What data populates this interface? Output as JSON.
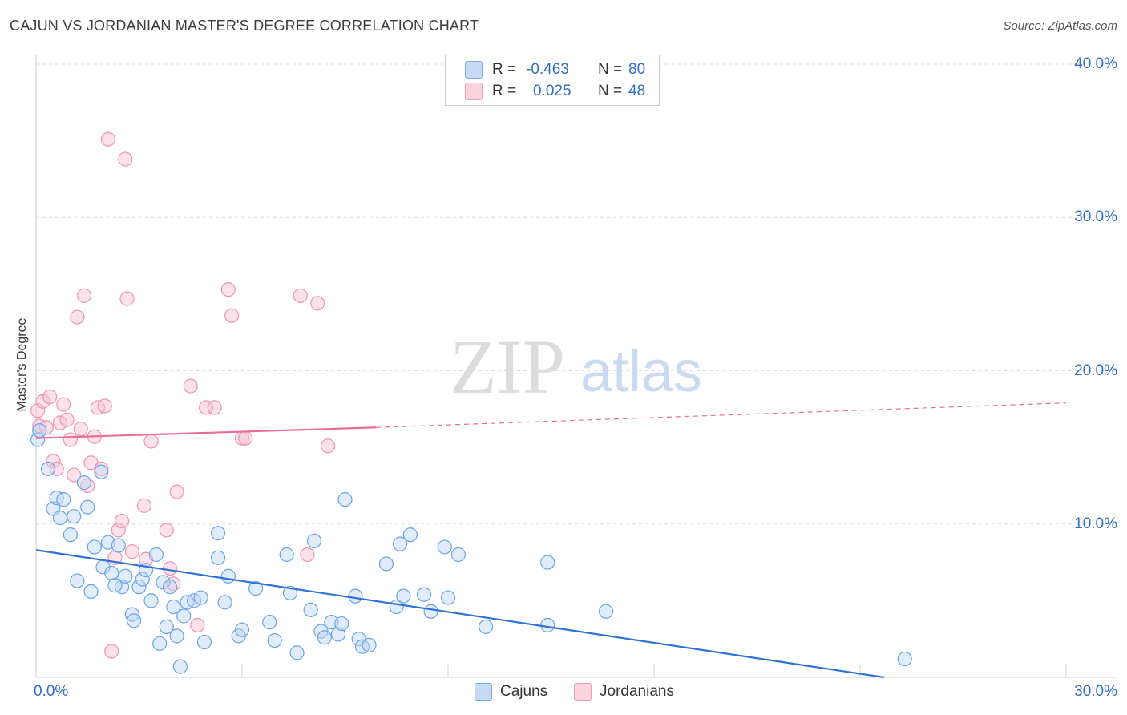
{
  "header": {
    "title": "CAJUN VS JORDANIAN MASTER'S DEGREE CORRELATION CHART",
    "source": "Source: ZipAtlas.com"
  },
  "watermark": {
    "zip": "ZIP",
    "atlas": "atlas"
  },
  "legend": {
    "rows": [
      {
        "r_label": "R =",
        "r_value": "-0.463",
        "n_label": "N =",
        "n_value": "80",
        "color": "#a9c8f0"
      },
      {
        "r_label": "R =",
        "r_value": "0.025",
        "n_label": "N =",
        "n_value": "48",
        "color": "#f6b8cb"
      }
    ]
  },
  "bottom_legend": {
    "cajuns": "Cajuns",
    "jordanians": "Jordanians"
  },
  "chart_data": {
    "type": "scatter",
    "title": "CAJUN VS JORDANIAN MASTER'S DEGREE CORRELATION CHART",
    "xlabel": "",
    "ylabel": "Master's Degree",
    "xlim": [
      0,
      30
    ],
    "ylim": [
      0,
      40
    ],
    "x_tick_labels": [
      "0.0%",
      "30.0%"
    ],
    "y_tick_labels": [
      "10.0%",
      "20.0%",
      "30.0%",
      "40.0%"
    ],
    "y_ticks": [
      10,
      20,
      30,
      40
    ],
    "colors": {
      "cajuns": "#6aa3e6",
      "jordanians": "#ee93b0",
      "cajuns_line": "#2f72d3",
      "jordanians_line": "#e86d98"
    },
    "series": [
      {
        "name": "Cajuns",
        "r": -0.463,
        "n": 80,
        "trend": {
          "x0": 0,
          "y0": 8.3,
          "x1": 24.7,
          "y1": 0,
          "dashed_to": null
        },
        "points": [
          [
            0.05,
            15.5
          ],
          [
            0.35,
            13.6
          ],
          [
            0.5,
            11.0
          ],
          [
            0.6,
            11.7
          ],
          [
            0.7,
            10.4
          ],
          [
            0.8,
            11.6
          ],
          [
            1.0,
            9.3
          ],
          [
            1.1,
            10.5
          ],
          [
            1.2,
            6.3
          ],
          [
            1.4,
            12.7
          ],
          [
            1.5,
            11.1
          ],
          [
            1.6,
            5.6
          ],
          [
            1.7,
            8.5
          ],
          [
            1.9,
            13.4
          ],
          [
            1.95,
            7.2
          ],
          [
            2.1,
            8.8
          ],
          [
            2.2,
            6.8
          ],
          [
            2.4,
            8.6
          ],
          [
            2.5,
            5.9
          ],
          [
            2.6,
            6.6
          ],
          [
            2.8,
            4.1
          ],
          [
            2.85,
            3.7
          ],
          [
            3.0,
            5.9
          ],
          [
            3.1,
            6.4
          ],
          [
            3.2,
            7.0
          ],
          [
            3.35,
            5.0
          ],
          [
            3.5,
            8.0
          ],
          [
            3.6,
            2.2
          ],
          [
            3.7,
            6.2
          ],
          [
            3.8,
            3.3
          ],
          [
            3.9,
            5.9
          ],
          [
            4.0,
            4.6
          ],
          [
            4.1,
            2.7
          ],
          [
            4.2,
            0.7
          ],
          [
            4.3,
            4.0
          ],
          [
            4.4,
            4.9
          ],
          [
            4.6,
            5.0
          ],
          [
            4.8,
            5.2
          ],
          [
            4.9,
            2.3
          ],
          [
            5.3,
            7.8
          ],
          [
            5.3,
            9.4
          ],
          [
            5.5,
            4.9
          ],
          [
            5.6,
            6.6
          ],
          [
            5.9,
            2.7
          ],
          [
            6.0,
            3.1
          ],
          [
            6.4,
            5.8
          ],
          [
            6.8,
            3.6
          ],
          [
            6.95,
            2.4
          ],
          [
            7.3,
            8.0
          ],
          [
            7.4,
            5.5
          ],
          [
            7.6,
            1.6
          ],
          [
            8.0,
            4.4
          ],
          [
            8.1,
            8.9
          ],
          [
            8.3,
            3.0
          ],
          [
            8.4,
            2.6
          ],
          [
            8.6,
            3.6
          ],
          [
            8.8,
            2.8
          ],
          [
            8.9,
            3.5
          ],
          [
            9.0,
            11.6
          ],
          [
            9.3,
            5.3
          ],
          [
            9.4,
            2.5
          ],
          [
            9.5,
            2.0
          ],
          [
            9.7,
            2.1
          ],
          [
            10.2,
            7.4
          ],
          [
            10.5,
            4.6
          ],
          [
            10.6,
            8.7
          ],
          [
            10.7,
            5.3
          ],
          [
            10.9,
            9.3
          ],
          [
            11.3,
            5.4
          ],
          [
            11.5,
            4.3
          ],
          [
            11.9,
            8.5
          ],
          [
            12.0,
            5.2
          ],
          [
            12.3,
            8.0
          ],
          [
            13.1,
            3.3
          ],
          [
            14.9,
            3.4
          ],
          [
            14.9,
            7.5
          ],
          [
            16.6,
            4.3
          ],
          [
            25.3,
            1.2
          ],
          [
            0.1,
            16.1
          ],
          [
            2.3,
            6.0
          ]
        ]
      },
      {
        "name": "Jordanians",
        "r": 0.025,
        "n": 48,
        "trend": {
          "x0": 0,
          "y0": 15.6,
          "x1": 9.9,
          "y1": 16.3,
          "dashed_to": {
            "x": 30,
            "y": 17.9
          }
        },
        "points": [
          [
            0.05,
            17.4
          ],
          [
            0.1,
            16.4
          ],
          [
            0.2,
            18.0
          ],
          [
            0.3,
            16.3
          ],
          [
            0.4,
            18.3
          ],
          [
            0.5,
            14.1
          ],
          [
            0.6,
            13.6
          ],
          [
            0.7,
            16.6
          ],
          [
            0.8,
            17.8
          ],
          [
            0.9,
            16.8
          ],
          [
            1.0,
            15.5
          ],
          [
            1.1,
            13.2
          ],
          [
            1.2,
            23.5
          ],
          [
            1.3,
            16.2
          ],
          [
            1.4,
            24.9
          ],
          [
            1.5,
            12.5
          ],
          [
            1.6,
            14.0
          ],
          [
            1.7,
            15.7
          ],
          [
            1.8,
            17.6
          ],
          [
            1.9,
            13.6
          ],
          [
            2.0,
            17.7
          ],
          [
            2.1,
            35.1
          ],
          [
            2.2,
            1.7
          ],
          [
            2.3,
            7.8
          ],
          [
            2.4,
            9.6
          ],
          [
            2.5,
            10.2
          ],
          [
            2.6,
            33.8
          ],
          [
            2.65,
            24.7
          ],
          [
            2.8,
            8.2
          ],
          [
            3.15,
            11.2
          ],
          [
            3.2,
            7.7
          ],
          [
            3.35,
            15.4
          ],
          [
            3.8,
            9.6
          ],
          [
            3.9,
            7.1
          ],
          [
            4.0,
            6.1
          ],
          [
            4.1,
            12.1
          ],
          [
            4.5,
            19.0
          ],
          [
            4.7,
            3.4
          ],
          [
            4.95,
            17.6
          ],
          [
            5.2,
            17.6
          ],
          [
            5.6,
            25.3
          ],
          [
            5.7,
            23.6
          ],
          [
            6.0,
            15.6
          ],
          [
            6.1,
            15.6
          ],
          [
            7.7,
            24.9
          ],
          [
            7.9,
            8.0
          ],
          [
            8.2,
            24.4
          ],
          [
            8.5,
            15.1
          ]
        ]
      }
    ]
  }
}
